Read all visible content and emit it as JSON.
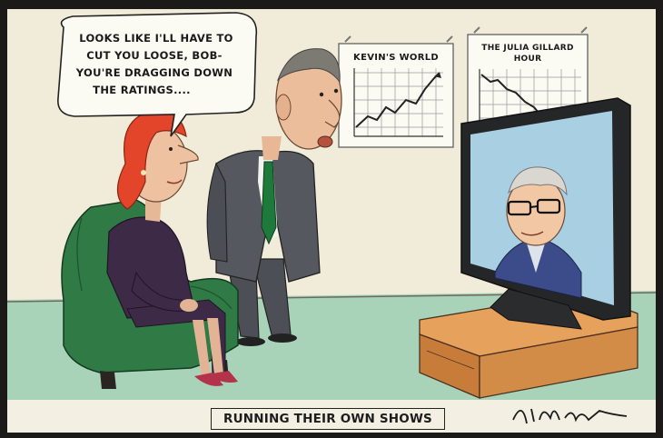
{
  "cartoon": {
    "speech_lines": [
      "LOOKS LIKE I'LL HAVE TO",
      "CUT YOU LOOSE, BOB-",
      "YOU'RE DRAGGING DOWN",
      "THE RATINGS...."
    ],
    "left_chart_title": "KEVIN'S WORLD",
    "right_chart_title_lines": [
      "THE JULIA GILLARD",
      "HOUR"
    ],
    "caption": "RUNNING THEIR OWN SHOWS",
    "signature": "Nicholson"
  },
  "colors": {
    "wall": "#f1ecd9",
    "floor": "#a9d3b9",
    "armchair": "#2f7a45",
    "suit": "#55585e",
    "tv_screen": "#a9cfe3",
    "tv_stand": "#d08a45",
    "hair": "#e2452a",
    "tie": "#1e7a3a"
  }
}
